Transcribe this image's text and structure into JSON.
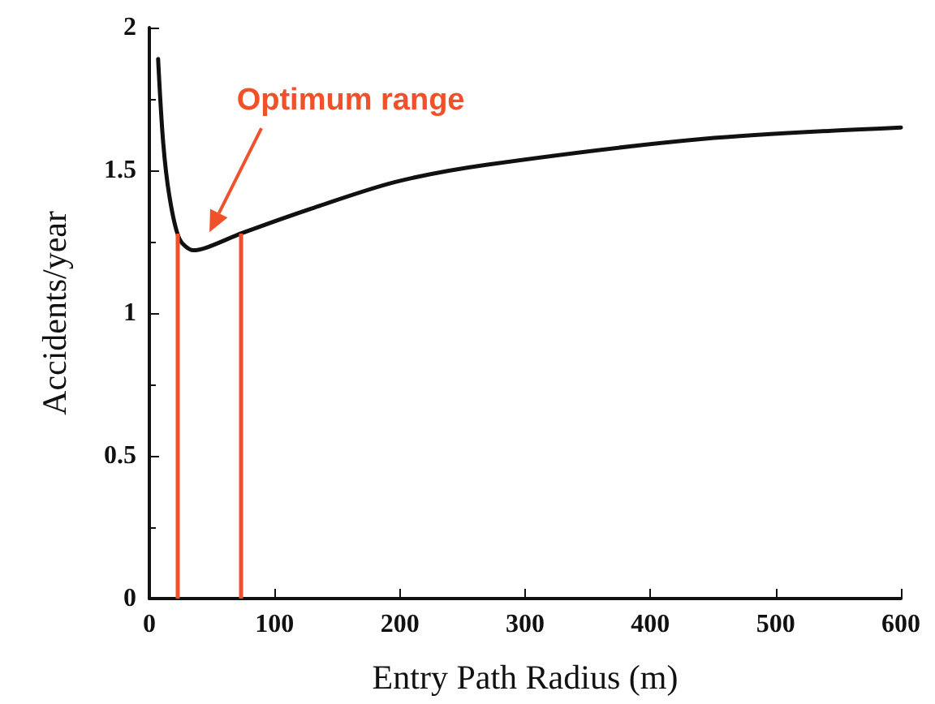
{
  "chart_data": {
    "type": "line",
    "xlabel": "Entry Path Radius (m)",
    "ylabel": "Accidents/year",
    "x": [
      7,
      11,
      16,
      24,
      35,
      46,
      74,
      132,
      197,
      270,
      442,
      600
    ],
    "series": [
      {
        "color": "#111111",
        "values": [
          1.89,
          1.6,
          1.41,
          1.26,
          1.22,
          1.23,
          1.28,
          1.37,
          1.46,
          1.52,
          1.61,
          1.65
        ]
      }
    ],
    "xlim": [
      0,
      600
    ],
    "xticks": [
      0,
      100,
      200,
      300,
      400,
      500,
      600
    ],
    "ylim": [
      0,
      2
    ],
    "yticks": [
      0,
      0.5,
      1,
      1.5,
      2
    ],
    "ref_lines": [
      {
        "axis": "x",
        "value": 23,
        "color": "#f0502a"
      },
      {
        "axis": "x",
        "value": 73,
        "color": "#f0502a"
      }
    ],
    "annotations": [
      "Optimum range"
    ],
    "grid": false,
    "marker": "none",
    "line_style": "solid"
  }
}
